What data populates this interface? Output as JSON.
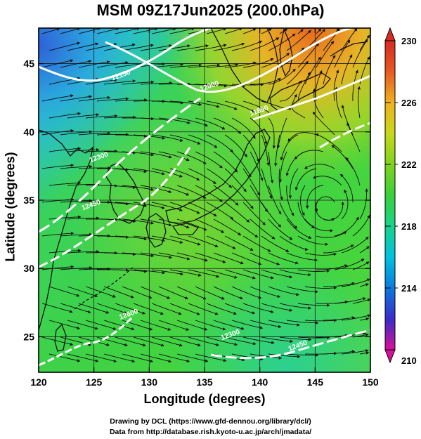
{
  "title": "MSM 09Z17Jun2025 (200.0hPa)",
  "xlabel": "Longitude (degrees)",
  "ylabel": "Latitude  (degrees)",
  "credit_line1": "Drawing by DCL (https://www.gfd-dennou.org/library/dcl/)",
  "credit_line2": "Data from http://database.rish.kyoto-u.ac.jp/arch/jmadata/",
  "map": {
    "lon_range": [
      120,
      150
    ],
    "lat_range": [
      22.4,
      47.6
    ],
    "lon_ticks": [
      120,
      125,
      130,
      135,
      140,
      145,
      150
    ],
    "lon_tick_labels": [
      "120",
      "125",
      "130",
      "135",
      "140",
      "145",
      "150"
    ],
    "lat_ticks": [
      25,
      30,
      35,
      40,
      45
    ],
    "lat_tick_labels": [
      "25",
      "30",
      "35",
      "40",
      "45"
    ],
    "gridlines": true,
    "field": "temperature (K) shaded, streamlines, geopotential height contours",
    "vortex_center": {
      "lon": 146.3,
      "lat": 34.1
    },
    "contour_labels": [
      {
        "text": "12150",
        "lon": 127.5,
        "lat": 44.0
      },
      {
        "text": "12000",
        "lon": 135.5,
        "lat": 43.2
      },
      {
        "text": "11850",
        "lon": 140.0,
        "lat": 41.4
      },
      {
        "text": "12300",
        "lon": 125.5,
        "lat": 38.0
      },
      {
        "text": "12450",
        "lon": 124.8,
        "lat": 34.5
      },
      {
        "text": "12600",
        "lon": 128.2,
        "lat": 26.5
      },
      {
        "text": "12450",
        "lon": 143.5,
        "lat": 24.2
      },
      {
        "text": "12300",
        "lon": 137.4,
        "lat": 25.0
      }
    ]
  },
  "colorbar": {
    "min": 210,
    "max": 230,
    "tick_labels": [
      "230",
      "226",
      "222",
      "218",
      "214",
      "210"
    ],
    "tick_values": [
      230,
      226,
      222,
      218,
      214,
      210
    ],
    "colors": [
      "#d8109a",
      "#3a2cc9",
      "#0a7be0",
      "#00c2de",
      "#18d48a",
      "#38d13a",
      "#7fd41c",
      "#c8d81a",
      "#f0b020",
      "#e85a22",
      "#d62a22"
    ]
  }
}
